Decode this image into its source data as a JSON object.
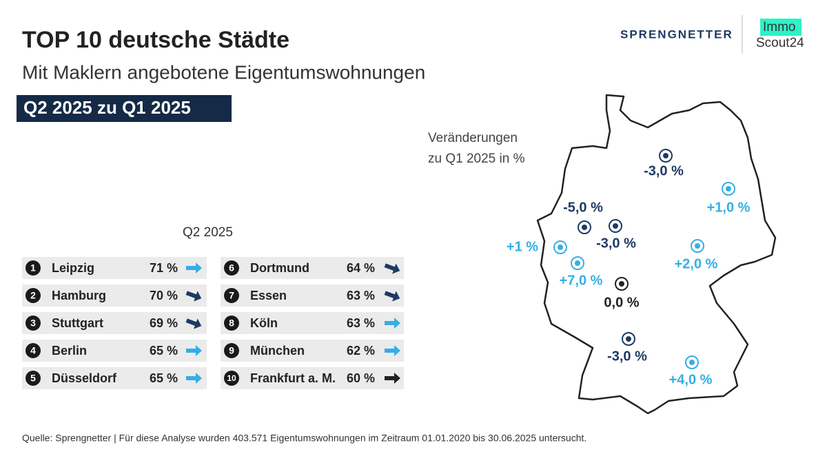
{
  "header": {
    "title": "TOP 10 deutsche Städte",
    "subtitle": "Mit Maklern angebotene Eigentumswohnungen",
    "badge": "Q2 2025 zu Q1 2025"
  },
  "logos": {
    "sprengnetter": "SPRENGNETTER",
    "immo": "Immo",
    "scout": "Scout24"
  },
  "ranking": {
    "heading": "Q2 2025",
    "rows": [
      {
        "rank": "1",
        "city": "Leipzig",
        "value": "71 %",
        "arrow_color": "#34aee4",
        "arrow_angle": 0
      },
      {
        "rank": "2",
        "city": "Hamburg",
        "value": "70 %",
        "arrow_color": "#1d3a63",
        "arrow_angle": 20
      },
      {
        "rank": "3",
        "city": "Stuttgart",
        "value": "69 %",
        "arrow_color": "#1d3a63",
        "arrow_angle": 20
      },
      {
        "rank": "4",
        "city": "Berlin",
        "value": "65 %",
        "arrow_color": "#34aee4",
        "arrow_angle": 0
      },
      {
        "rank": "5",
        "city": "Düsseldorf",
        "value": "65 %",
        "arrow_color": "#34aee4",
        "arrow_angle": 0
      },
      {
        "rank": "6",
        "city": "Dortmund",
        "value": "64 %",
        "arrow_color": "#1d3a63",
        "arrow_angle": 20
      },
      {
        "rank": "7",
        "city": "Essen",
        "value": "63 %",
        "arrow_color": "#1d3a63",
        "arrow_angle": 20
      },
      {
        "rank": "8",
        "city": "Köln",
        "value": "63 %",
        "arrow_color": "#34aee4",
        "arrow_angle": 0
      },
      {
        "rank": "9",
        "city": "München",
        "value": "62 %",
        "arrow_color": "#34aee4",
        "arrow_angle": 0
      },
      {
        "rank": "10",
        "city": "Frankfurt a. M.",
        "value": "60 %",
        "arrow_color": "#222222",
        "arrow_angle": 0
      }
    ]
  },
  "map": {
    "legend": [
      "Veränderungen",
      "zu Q1 2025 in %"
    ],
    "points": [
      {
        "label": "-3,0 %",
        "color": "#1d3a63"
      },
      {
        "label": "+1,0 %",
        "color": "#34aee4"
      },
      {
        "label": "-5,0 %",
        "color": "#1d3a63"
      },
      {
        "label": "-3,0 %",
        "color": "#1d3a63"
      },
      {
        "label": "+1 %",
        "color": "#34aee4"
      },
      {
        "label": "+2,0 %",
        "color": "#34aee4"
      },
      {
        "label": "+7,0 %",
        "color": "#34aee4"
      },
      {
        "label": "0,0 %",
        "color": "#222222"
      },
      {
        "label": "-3,0 %",
        "color": "#1d3a63"
      },
      {
        "label": "+4,0 %",
        "color": "#34aee4"
      }
    ]
  },
  "footer": {
    "source": "Quelle: Sprengnetter | Für diese Analyse wurden 403.571 Eigentumswohnungen im Zeitraum 01.01.2020 bis 30.06.2025 untersucht."
  }
}
